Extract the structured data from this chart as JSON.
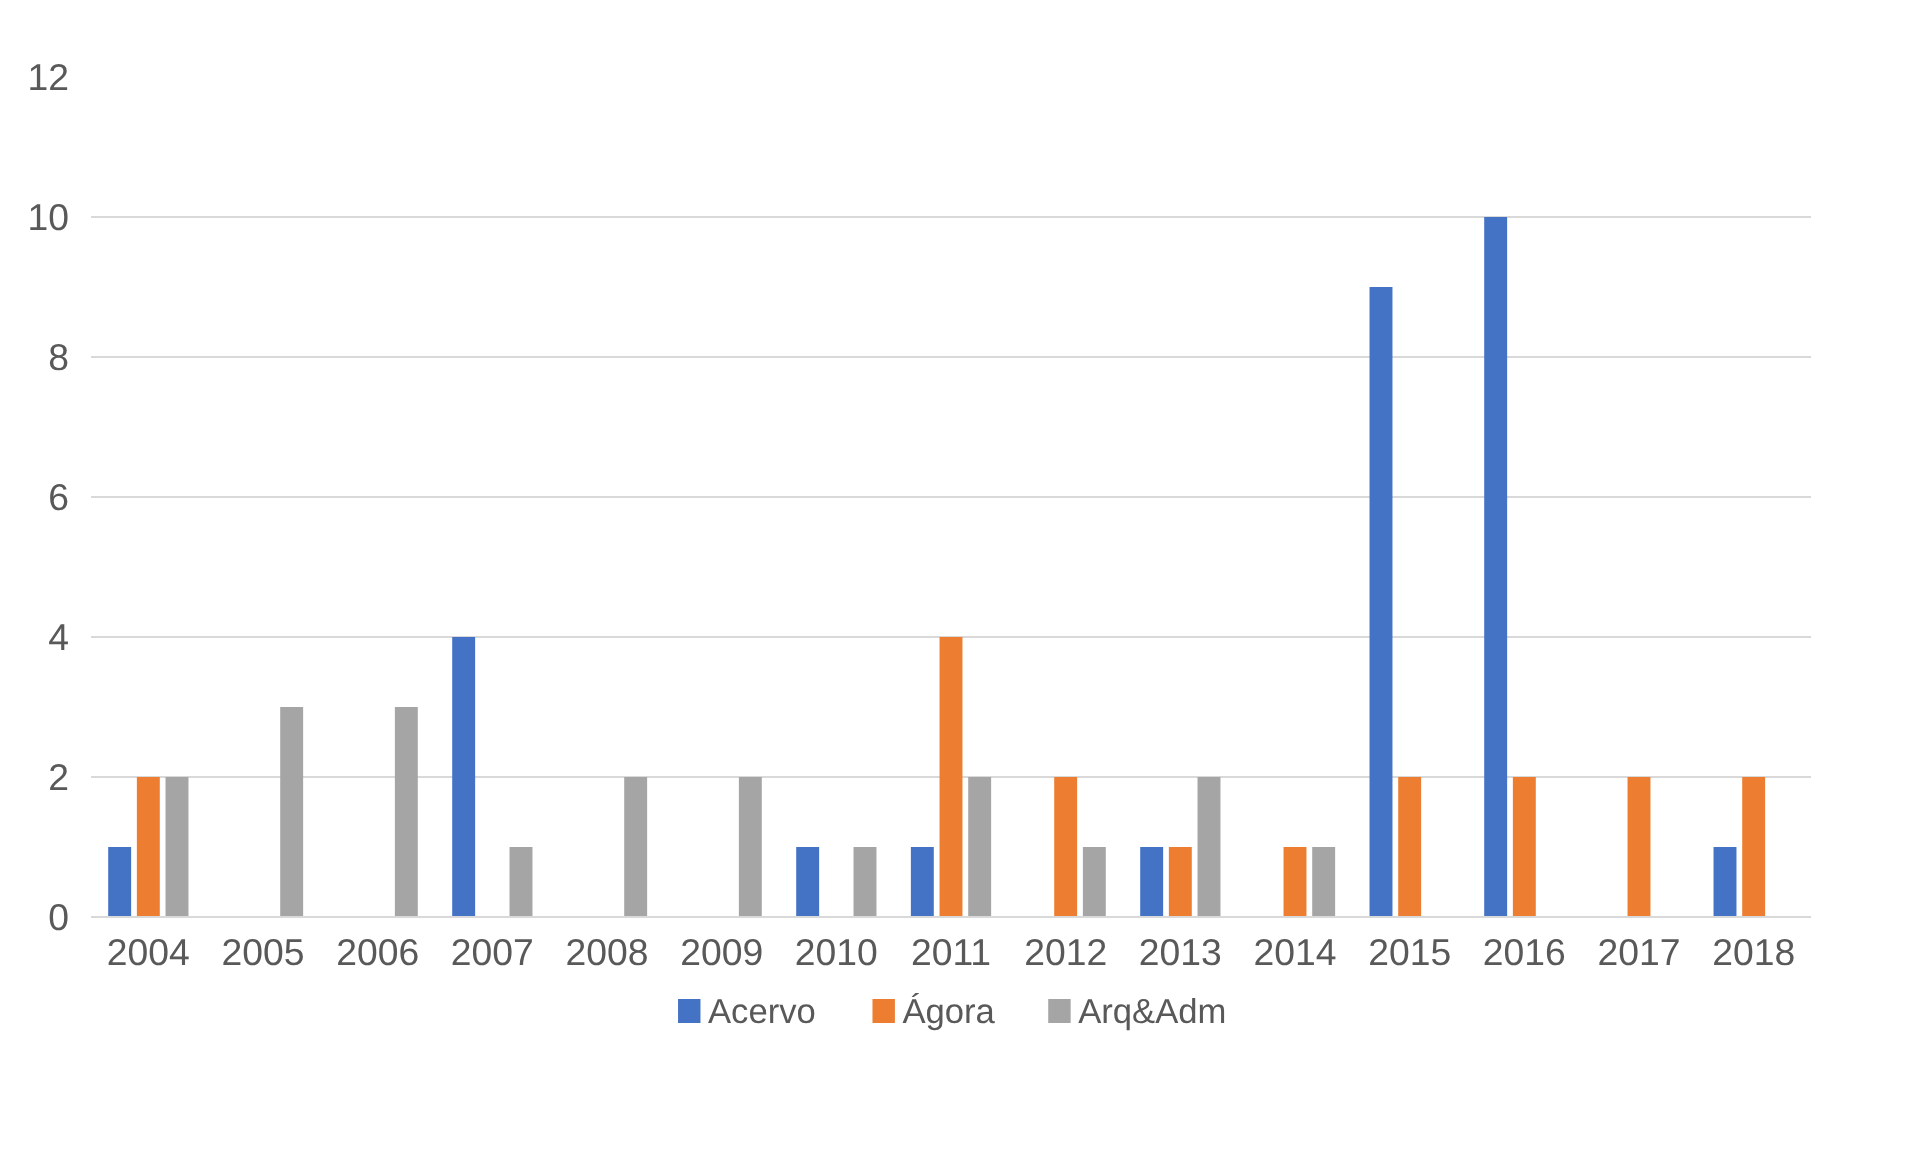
{
  "chart_data": {
    "type": "bar",
    "categories": [
      "2004",
      "2005",
      "2006",
      "2007",
      "2008",
      "2009",
      "2010",
      "2011",
      "2012",
      "2013",
      "2014",
      "2015",
      "2016",
      "2017",
      "2018"
    ],
    "series": [
      {
        "name": "Acervo",
        "color": "#4472c4",
        "values": [
          1,
          0,
          0,
          4,
          0,
          0,
          1,
          1,
          0,
          1,
          0,
          9,
          10,
          0,
          1
        ]
      },
      {
        "name": "Ágora",
        "color": "#ed7d31",
        "values": [
          2,
          0,
          0,
          0,
          0,
          0,
          0,
          4,
          2,
          1,
          1,
          2,
          2,
          2,
          2
        ]
      },
      {
        "name": "Arq&Adm",
        "color": "#a5a5a5",
        "values": [
          2,
          3,
          3,
          1,
          2,
          2,
          1,
          2,
          1,
          2,
          1,
          0,
          0,
          0,
          0
        ]
      }
    ],
    "ylim": [
      0,
      12
    ],
    "yticks": [
      0,
      2,
      4,
      6,
      8,
      10,
      12
    ],
    "grid": "y",
    "legend": "bottom"
  }
}
